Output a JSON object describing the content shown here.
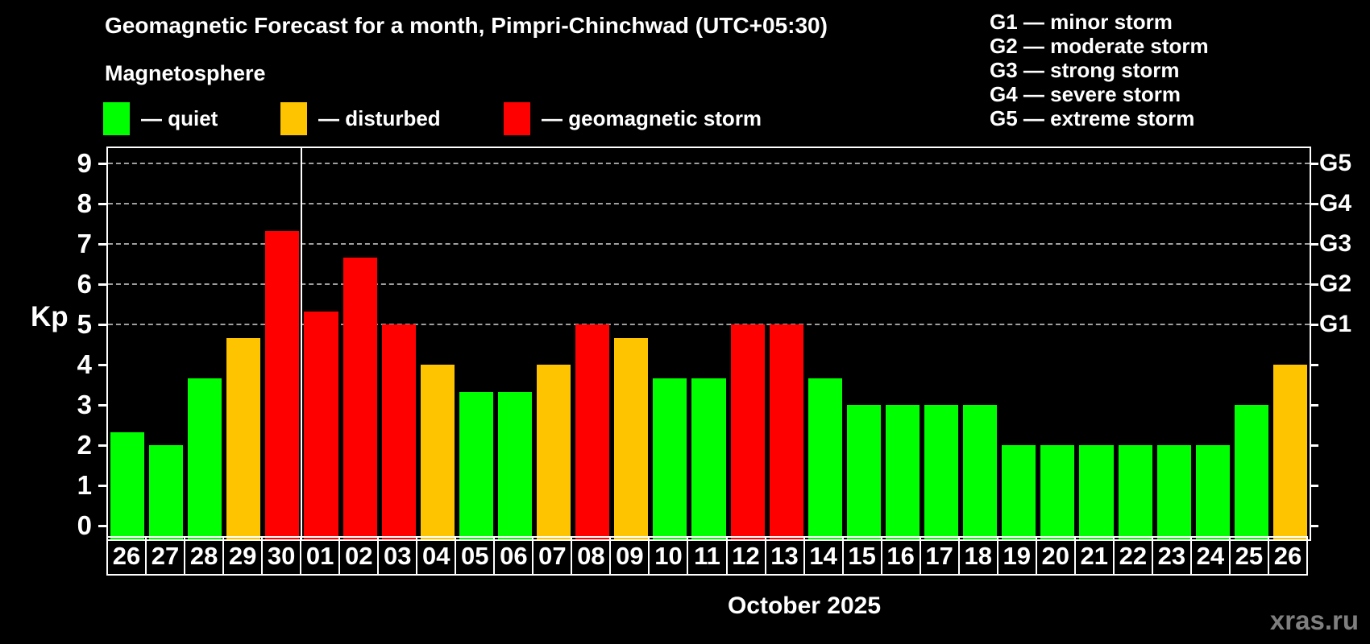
{
  "title": "Geomagnetic Forecast for a month, Pimpri-Chinchwad (UTC+05:30)",
  "subtitle": "Magnetosphere",
  "watermark": "xras.ru",
  "colors": {
    "quiet": "#00ff00",
    "disturbed": "#ffc400",
    "storm": "#ff0000",
    "grid": "#a0a0a0",
    "axis": "#ffffff",
    "background": "#000000",
    "watermark": "#7f7f7f"
  },
  "legend": [
    {
      "key": "quiet",
      "label": "— quiet"
    },
    {
      "key": "disturbed",
      "label": "— disturbed"
    },
    {
      "key": "storm",
      "label": "— geomagnetic storm"
    }
  ],
  "g_legend": [
    "G1 — minor storm",
    "G2 — moderate storm",
    "G3 — strong storm",
    "G4 — severe storm",
    "G5 — extreme storm"
  ],
  "chart_data": {
    "type": "bar",
    "title": "Geomagnetic Forecast for a month, Pimpri-Chinchwad (UTC+05:30)",
    "subtitle": "Magnetosphere",
    "ylabel": "Kp",
    "xlabel": "October 2025",
    "ylim": [
      0,
      9
    ],
    "yticks": [
      0,
      1,
      2,
      3,
      4,
      5,
      6,
      7,
      8,
      9
    ],
    "grid_levels": [
      5,
      6,
      7,
      8,
      9
    ],
    "grid": "dashed horizontal lines only at Kp 5-9",
    "legend_position": "top-left and top-right",
    "right_axis_labels": [
      {
        "kp": 5,
        "label": "G1"
      },
      {
        "kp": 6,
        "label": "G2"
      },
      {
        "kp": 7,
        "label": "G3"
      },
      {
        "kp": 8,
        "label": "G4"
      },
      {
        "kp": 9,
        "label": "G5"
      }
    ],
    "month_separator_after_index": 4,
    "categories": [
      "26",
      "27",
      "28",
      "29",
      "30",
      "01",
      "02",
      "03",
      "04",
      "05",
      "06",
      "07",
      "08",
      "09",
      "10",
      "11",
      "12",
      "13",
      "14",
      "15",
      "16",
      "17",
      "18",
      "19",
      "20",
      "21",
      "22",
      "23",
      "24",
      "25",
      "26"
    ],
    "values": [
      2.33,
      2,
      3.67,
      4.67,
      7.33,
      5.33,
      6.67,
      5,
      4,
      3.33,
      3.33,
      4,
      5,
      4.67,
      3.67,
      3.67,
      5,
      5,
      3.67,
      3,
      3,
      3,
      3,
      2,
      2,
      2,
      2,
      2,
      2,
      3,
      4
    ],
    "bars": [
      {
        "day": "26",
        "kp": 2.33,
        "status": "quiet"
      },
      {
        "day": "27",
        "kp": 2.0,
        "status": "quiet"
      },
      {
        "day": "28",
        "kp": 3.67,
        "status": "quiet"
      },
      {
        "day": "29",
        "kp": 4.67,
        "status": "disturbed"
      },
      {
        "day": "30",
        "kp": 7.33,
        "status": "storm"
      },
      {
        "day": "01",
        "kp": 5.33,
        "status": "storm"
      },
      {
        "day": "02",
        "kp": 6.67,
        "status": "storm"
      },
      {
        "day": "03",
        "kp": 5.0,
        "status": "storm"
      },
      {
        "day": "04",
        "kp": 4.0,
        "status": "disturbed"
      },
      {
        "day": "05",
        "kp": 3.33,
        "status": "quiet"
      },
      {
        "day": "06",
        "kp": 3.33,
        "status": "quiet"
      },
      {
        "day": "07",
        "kp": 4.0,
        "status": "disturbed"
      },
      {
        "day": "08",
        "kp": 5.0,
        "status": "storm"
      },
      {
        "day": "09",
        "kp": 4.67,
        "status": "disturbed"
      },
      {
        "day": "10",
        "kp": 3.67,
        "status": "quiet"
      },
      {
        "day": "11",
        "kp": 3.67,
        "status": "quiet"
      },
      {
        "day": "12",
        "kp": 5.0,
        "status": "storm"
      },
      {
        "day": "13",
        "kp": 5.0,
        "status": "storm"
      },
      {
        "day": "14",
        "kp": 3.67,
        "status": "quiet"
      },
      {
        "day": "15",
        "kp": 3.0,
        "status": "quiet"
      },
      {
        "day": "16",
        "kp": 3.0,
        "status": "quiet"
      },
      {
        "day": "17",
        "kp": 3.0,
        "status": "quiet"
      },
      {
        "day": "18",
        "kp": 3.0,
        "status": "quiet"
      },
      {
        "day": "19",
        "kp": 2.0,
        "status": "quiet"
      },
      {
        "day": "20",
        "kp": 2.0,
        "status": "quiet"
      },
      {
        "day": "21",
        "kp": 2.0,
        "status": "quiet"
      },
      {
        "day": "22",
        "kp": 2.0,
        "status": "quiet"
      },
      {
        "day": "23",
        "kp": 2.0,
        "status": "quiet"
      },
      {
        "day": "24",
        "kp": 2.0,
        "status": "quiet"
      },
      {
        "day": "25",
        "kp": 3.0,
        "status": "quiet"
      },
      {
        "day": "26",
        "kp": 4.0,
        "status": "disturbed"
      }
    ]
  }
}
